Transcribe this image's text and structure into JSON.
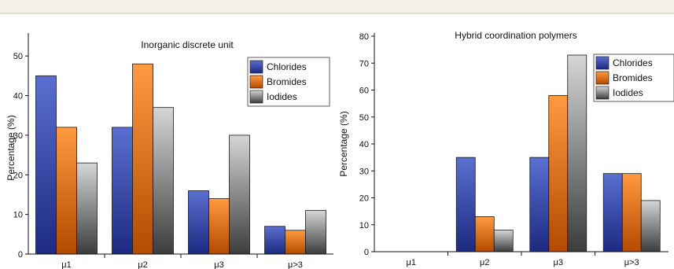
{
  "chart_data": [
    {
      "type": "bar",
      "title": "Inorganic discrete unit",
      "xlabel": "",
      "ylabel": "Percentage (%)",
      "categories": [
        "μ1",
        "μ2",
        "μ3",
        "μ>3"
      ],
      "series": [
        {
          "name": "Chlorides",
          "values": [
            45,
            32,
            16,
            7
          ]
        },
        {
          "name": "Bromides",
          "values": [
            32,
            48,
            14,
            6
          ]
        },
        {
          "name": "Iodides",
          "values": [
            23,
            37,
            30,
            11
          ]
        }
      ],
      "ylim": [
        0,
        55
      ],
      "yticks": [
        0,
        10,
        20,
        30,
        40,
        50
      ],
      "legend_position": "top-right"
    },
    {
      "type": "bar",
      "title": "Hybrid coordination polymers",
      "xlabel": "",
      "ylabel": "Percentage (%)",
      "categories": [
        "μ1",
        "μ2",
        "μ3",
        "μ>3"
      ],
      "series": [
        {
          "name": "Chlorides",
          "values": [
            0,
            35,
            35,
            29
          ]
        },
        {
          "name": "Bromides",
          "values": [
            0,
            13,
            58,
            29
          ]
        },
        {
          "name": "Iodides",
          "values": [
            0,
            8,
            73,
            19
          ]
        }
      ],
      "ylim": [
        0,
        80
      ],
      "yticks": [
        0,
        10,
        20,
        30,
        40,
        50,
        60,
        70,
        80
      ],
      "legend_position": "top-right"
    }
  ],
  "colors": {
    "Chlorides": [
      "#5a6fd0",
      "#1c2a80"
    ],
    "Bromides": [
      "#ff9a40",
      "#b34a00"
    ],
    "Iodides": [
      "#d6d6d6",
      "#3c3c3c"
    ]
  }
}
